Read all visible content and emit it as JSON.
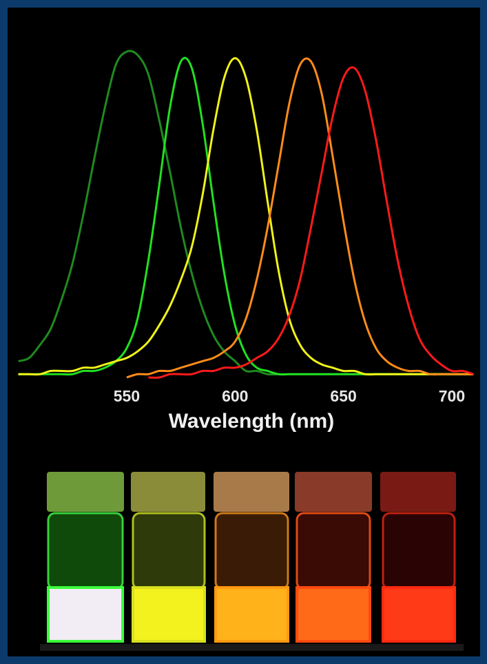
{
  "chart_data": {
    "type": "line",
    "xlabel": "Wavelength (nm)",
    "x": [
      500,
      505,
      510,
      515,
      520,
      525,
      530,
      535,
      540,
      545,
      550,
      555,
      560,
      565,
      570,
      575,
      580,
      585,
      590,
      595,
      600,
      605,
      610,
      615,
      620,
      625,
      630,
      635,
      640,
      645,
      650,
      655,
      660,
      665,
      670,
      675,
      680,
      685,
      690,
      695,
      700,
      705,
      710
    ],
    "series": [
      {
        "color": "#1f8a1f",
        "values": [
          0.05,
          0.06,
          0.1,
          0.15,
          0.24,
          0.35,
          0.5,
          0.67,
          0.83,
          0.96,
          1.0,
          0.99,
          0.93,
          0.79,
          0.63,
          0.46,
          0.32,
          0.21,
          0.13,
          0.08,
          0.05,
          0.02,
          0.02,
          0.01,
          0.01,
          0.01,
          0.01,
          0.01,
          0.01,
          0.01,
          0.01,
          0.01,
          0.01,
          0.01,
          0.01,
          0.01,
          0.01,
          0.01,
          0.01,
          0.01,
          0.01,
          0.01,
          0.01
        ]
      },
      {
        "color": "#22e022",
        "values": [
          0.01,
          0.01,
          0.01,
          0.01,
          0.01,
          0.01,
          0.02,
          0.02,
          0.03,
          0.05,
          0.09,
          0.18,
          0.36,
          0.59,
          0.83,
          0.97,
          0.95,
          0.78,
          0.54,
          0.32,
          0.16,
          0.07,
          0.03,
          0.02,
          0.01,
          0.01,
          0.01,
          0.01,
          0.01,
          0.01,
          0.01,
          0.01,
          0.01,
          0.01,
          0.01,
          0.01,
          0.01,
          0.01,
          0.01,
          0.01,
          0.01,
          0.01,
          0.01
        ]
      },
      {
        "color": "#f2f21a",
        "values": [
          0.01,
          0.01,
          0.01,
          0.02,
          0.02,
          0.02,
          0.03,
          0.03,
          0.04,
          0.05,
          0.06,
          0.08,
          0.11,
          0.16,
          0.22,
          0.3,
          0.4,
          0.56,
          0.76,
          0.92,
          0.98,
          0.92,
          0.76,
          0.54,
          0.33,
          0.18,
          0.1,
          0.06,
          0.04,
          0.03,
          0.02,
          0.02,
          0.01,
          0.01,
          0.01,
          0.01,
          0.01,
          0.01,
          0.01,
          0.01,
          0.01,
          0.01,
          0.01
        ]
      },
      {
        "color": "#ff8c1a",
        "values": [
          null,
          null,
          null,
          null,
          null,
          null,
          null,
          null,
          null,
          null,
          0,
          0.01,
          0.01,
          0.02,
          0.02,
          0.03,
          0.04,
          0.05,
          0.06,
          0.08,
          0.11,
          0.18,
          0.3,
          0.46,
          0.65,
          0.84,
          0.96,
          0.97,
          0.87,
          0.68,
          0.48,
          0.3,
          0.17,
          0.09,
          0.05,
          0.03,
          0.02,
          0.02,
          0.01,
          0.01,
          0.01,
          0.01,
          0.01
        ]
      },
      {
        "color": "#ff1a1a",
        "values": [
          null,
          null,
          null,
          null,
          null,
          null,
          null,
          null,
          null,
          null,
          null,
          null,
          0,
          0,
          0.01,
          0.01,
          0.01,
          0.02,
          0.02,
          0.03,
          0.03,
          0.04,
          0.06,
          0.08,
          0.12,
          0.19,
          0.3,
          0.46,
          0.63,
          0.8,
          0.92,
          0.95,
          0.88,
          0.73,
          0.54,
          0.36,
          0.22,
          0.12,
          0.07,
          0.04,
          0.02,
          0.02,
          0.01
        ]
      }
    ],
    "xlim": [
      496,
      714
    ],
    "ylim": [
      0,
      1
    ],
    "xticks": [
      550,
      600,
      650,
      700
    ],
    "grid": false
  }
}
